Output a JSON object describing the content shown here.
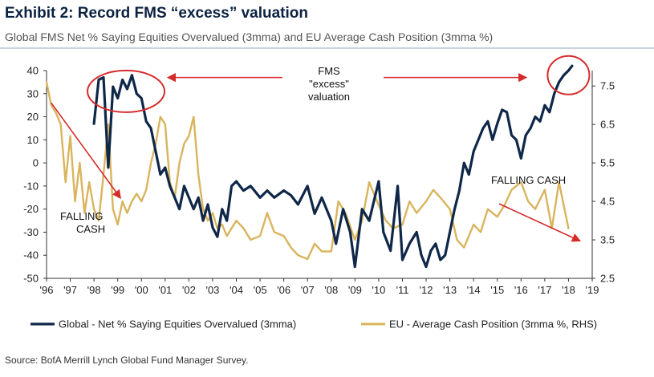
{
  "header": {
    "title": "Exhibit 2: Record FMS “excess” valuation",
    "subtitle": "Global FMS Net % Saying Equities Overvalued (3mma) and EU Average Cash Position (3mma %)"
  },
  "footer": {
    "source": "Source: BofA Merrill Lynch Global Fund Manager Survey."
  },
  "colors": {
    "global": "#0f2748",
    "eu": "#d9b45c",
    "annotation": "#d62b2b",
    "axis": "#333333"
  },
  "chart_data": {
    "type": "line",
    "title": "",
    "xlabel": "",
    "ylabel": "",
    "x_ticks": [
      "'96",
      "'97",
      "'98",
      "'99",
      "'00",
      "'01",
      "'02",
      "'03",
      "'04",
      "'05",
      "'06",
      "'07",
      "'08",
      "'09",
      "'10",
      "'11",
      "'12",
      "'13",
      "'14",
      "'15",
      "'16",
      "'17",
      "'18",
      "'19"
    ],
    "xlim": [
      1996,
      2019
    ],
    "y_left": {
      "ylim": [
        -50,
        40
      ],
      "ticks": [
        "40",
        "30",
        "20",
        "10",
        "0",
        "-10",
        "-20",
        "-30",
        "-40",
        "-50"
      ]
    },
    "y_right": {
      "ylim": [
        2.5,
        7.9
      ],
      "ticks": [
        "7.5",
        "6.5",
        "5.5",
        "4.5",
        "3.5",
        "2.5"
      ]
    },
    "grid": false,
    "legend_position": "bottom",
    "series": [
      {
        "name": "Global - Net % Saying Equities Overvalued (3mma)",
        "axis": "left",
        "x": [
          1998.0,
          1998.2,
          1998.4,
          1998.6,
          1998.8,
          1999.0,
          1999.2,
          1999.4,
          1999.6,
          1999.8,
          2000.0,
          2000.2,
          2000.4,
          2000.6,
          2000.8,
          2001.0,
          2001.2,
          2001.4,
          2001.6,
          2001.8,
          2002.0,
          2002.2,
          2002.4,
          2002.6,
          2002.8,
          2003.0,
          2003.2,
          2003.4,
          2003.6,
          2003.8,
          2004.0,
          2004.3,
          2004.6,
          2005.0,
          2005.3,
          2005.6,
          2006.0,
          2006.3,
          2006.6,
          2007.0,
          2007.3,
          2007.6,
          2008.0,
          2008.2,
          2008.5,
          2008.8,
          2009.0,
          2009.3,
          2009.6,
          2010.0,
          2010.2,
          2010.5,
          2010.8,
          2011.0,
          2011.3,
          2011.6,
          2011.8,
          2012.0,
          2012.2,
          2012.4,
          2012.6,
          2012.8,
          2013.0,
          2013.2,
          2013.4,
          2013.6,
          2013.8,
          2014.0,
          2014.2,
          2014.4,
          2014.6,
          2014.8,
          2015.0,
          2015.2,
          2015.4,
          2015.6,
          2015.8,
          2016.0,
          2016.2,
          2016.4,
          2016.6,
          2016.8,
          2017.0,
          2017.2,
          2017.4,
          2017.6,
          2017.8,
          2018.0,
          2018.15
        ],
        "y": [
          17,
          36,
          37,
          -2,
          33,
          28,
          36,
          32,
          38,
          30,
          28,
          18,
          15,
          5,
          -5,
          -2,
          -10,
          -15,
          -20,
          -10,
          -15,
          -20,
          -15,
          -25,
          -18,
          -28,
          -32,
          -20,
          -25,
          -10,
          -8,
          -12,
          -10,
          -15,
          -12,
          -15,
          -12,
          -14,
          -18,
          -10,
          -22,
          -15,
          -25,
          -35,
          -20,
          -30,
          -45,
          -20,
          -25,
          -8,
          -30,
          -38,
          -10,
          -42,
          -35,
          -30,
          -40,
          -45,
          -38,
          -35,
          -42,
          -40,
          -30,
          -20,
          -12,
          0,
          -5,
          5,
          10,
          15,
          18,
          10,
          17,
          23,
          22,
          12,
          10,
          2,
          12,
          15,
          20,
          18,
          25,
          22,
          30,
          35,
          38,
          40,
          42
        ]
      },
      {
        "name": "EU - Average Cash Position (3mma %, RHS)",
        "axis": "right",
        "x": [
          1996.0,
          1996.2,
          1996.4,
          1996.6,
          1996.8,
          1997.0,
          1997.2,
          1997.4,
          1997.6,
          1997.8,
          1998.0,
          1998.2,
          1998.4,
          1998.6,
          1998.8,
          1999.0,
          1999.2,
          1999.4,
          1999.6,
          1999.8,
          2000.0,
          2000.2,
          2000.4,
          2000.6,
          2000.8,
          2001.0,
          2001.2,
          2001.4,
          2001.6,
          2001.8,
          2002.0,
          2002.2,
          2002.4,
          2002.6,
          2002.8,
          2003.0,
          2003.2,
          2003.4,
          2003.6,
          2003.8,
          2004.0,
          2004.3,
          2004.6,
          2005.0,
          2005.3,
          2005.6,
          2006.0,
          2006.3,
          2006.6,
          2007.0,
          2007.3,
          2007.6,
          2008.0,
          2008.3,
          2008.6,
          2009.0,
          2009.3,
          2009.6,
          2010.0,
          2010.3,
          2010.6,
          2011.0,
          2011.3,
          2011.6,
          2012.0,
          2012.3,
          2012.6,
          2013.0,
          2013.3,
          2013.6,
          2014.0,
          2014.3,
          2014.6,
          2015.0,
          2015.3,
          2015.6,
          2016.0,
          2016.3,
          2016.6,
          2017.0,
          2017.3,
          2017.6,
          2018.0
        ],
        "y": [
          7.6,
          7.0,
          6.8,
          6.5,
          5.0,
          6.2,
          4.5,
          5.5,
          4.2,
          5.0,
          4.3,
          4.0,
          5.2,
          6.5,
          4.3,
          3.9,
          4.5,
          4.2,
          4.5,
          4.7,
          4.5,
          4.8,
          5.5,
          6.0,
          6.7,
          6.5,
          5.0,
          4.6,
          5.5,
          6.0,
          6.2,
          6.7,
          5.2,
          4.3,
          4.0,
          4.2,
          3.8,
          3.9,
          3.6,
          3.8,
          4.0,
          3.8,
          3.5,
          3.6,
          4.2,
          3.7,
          3.6,
          3.3,
          3.1,
          3.0,
          3.4,
          3.2,
          3.2,
          4.5,
          4.2,
          3.5,
          4.0,
          5.0,
          4.4,
          4.0,
          3.8,
          3.9,
          4.5,
          4.2,
          4.5,
          4.8,
          4.6,
          4.3,
          3.5,
          3.3,
          3.9,
          3.7,
          4.3,
          4.1,
          4.4,
          4.8,
          5.0,
          4.5,
          4.3,
          4.8,
          3.8,
          5.0,
          3.8
        ]
      }
    ],
    "annotations": {
      "center_label": [
        "FMS",
        "\"excess\"",
        "valuation"
      ],
      "falling_cash_left": [
        "FALLING",
        "CASH"
      ],
      "falling_cash_right": "FALLING  CASH"
    }
  }
}
